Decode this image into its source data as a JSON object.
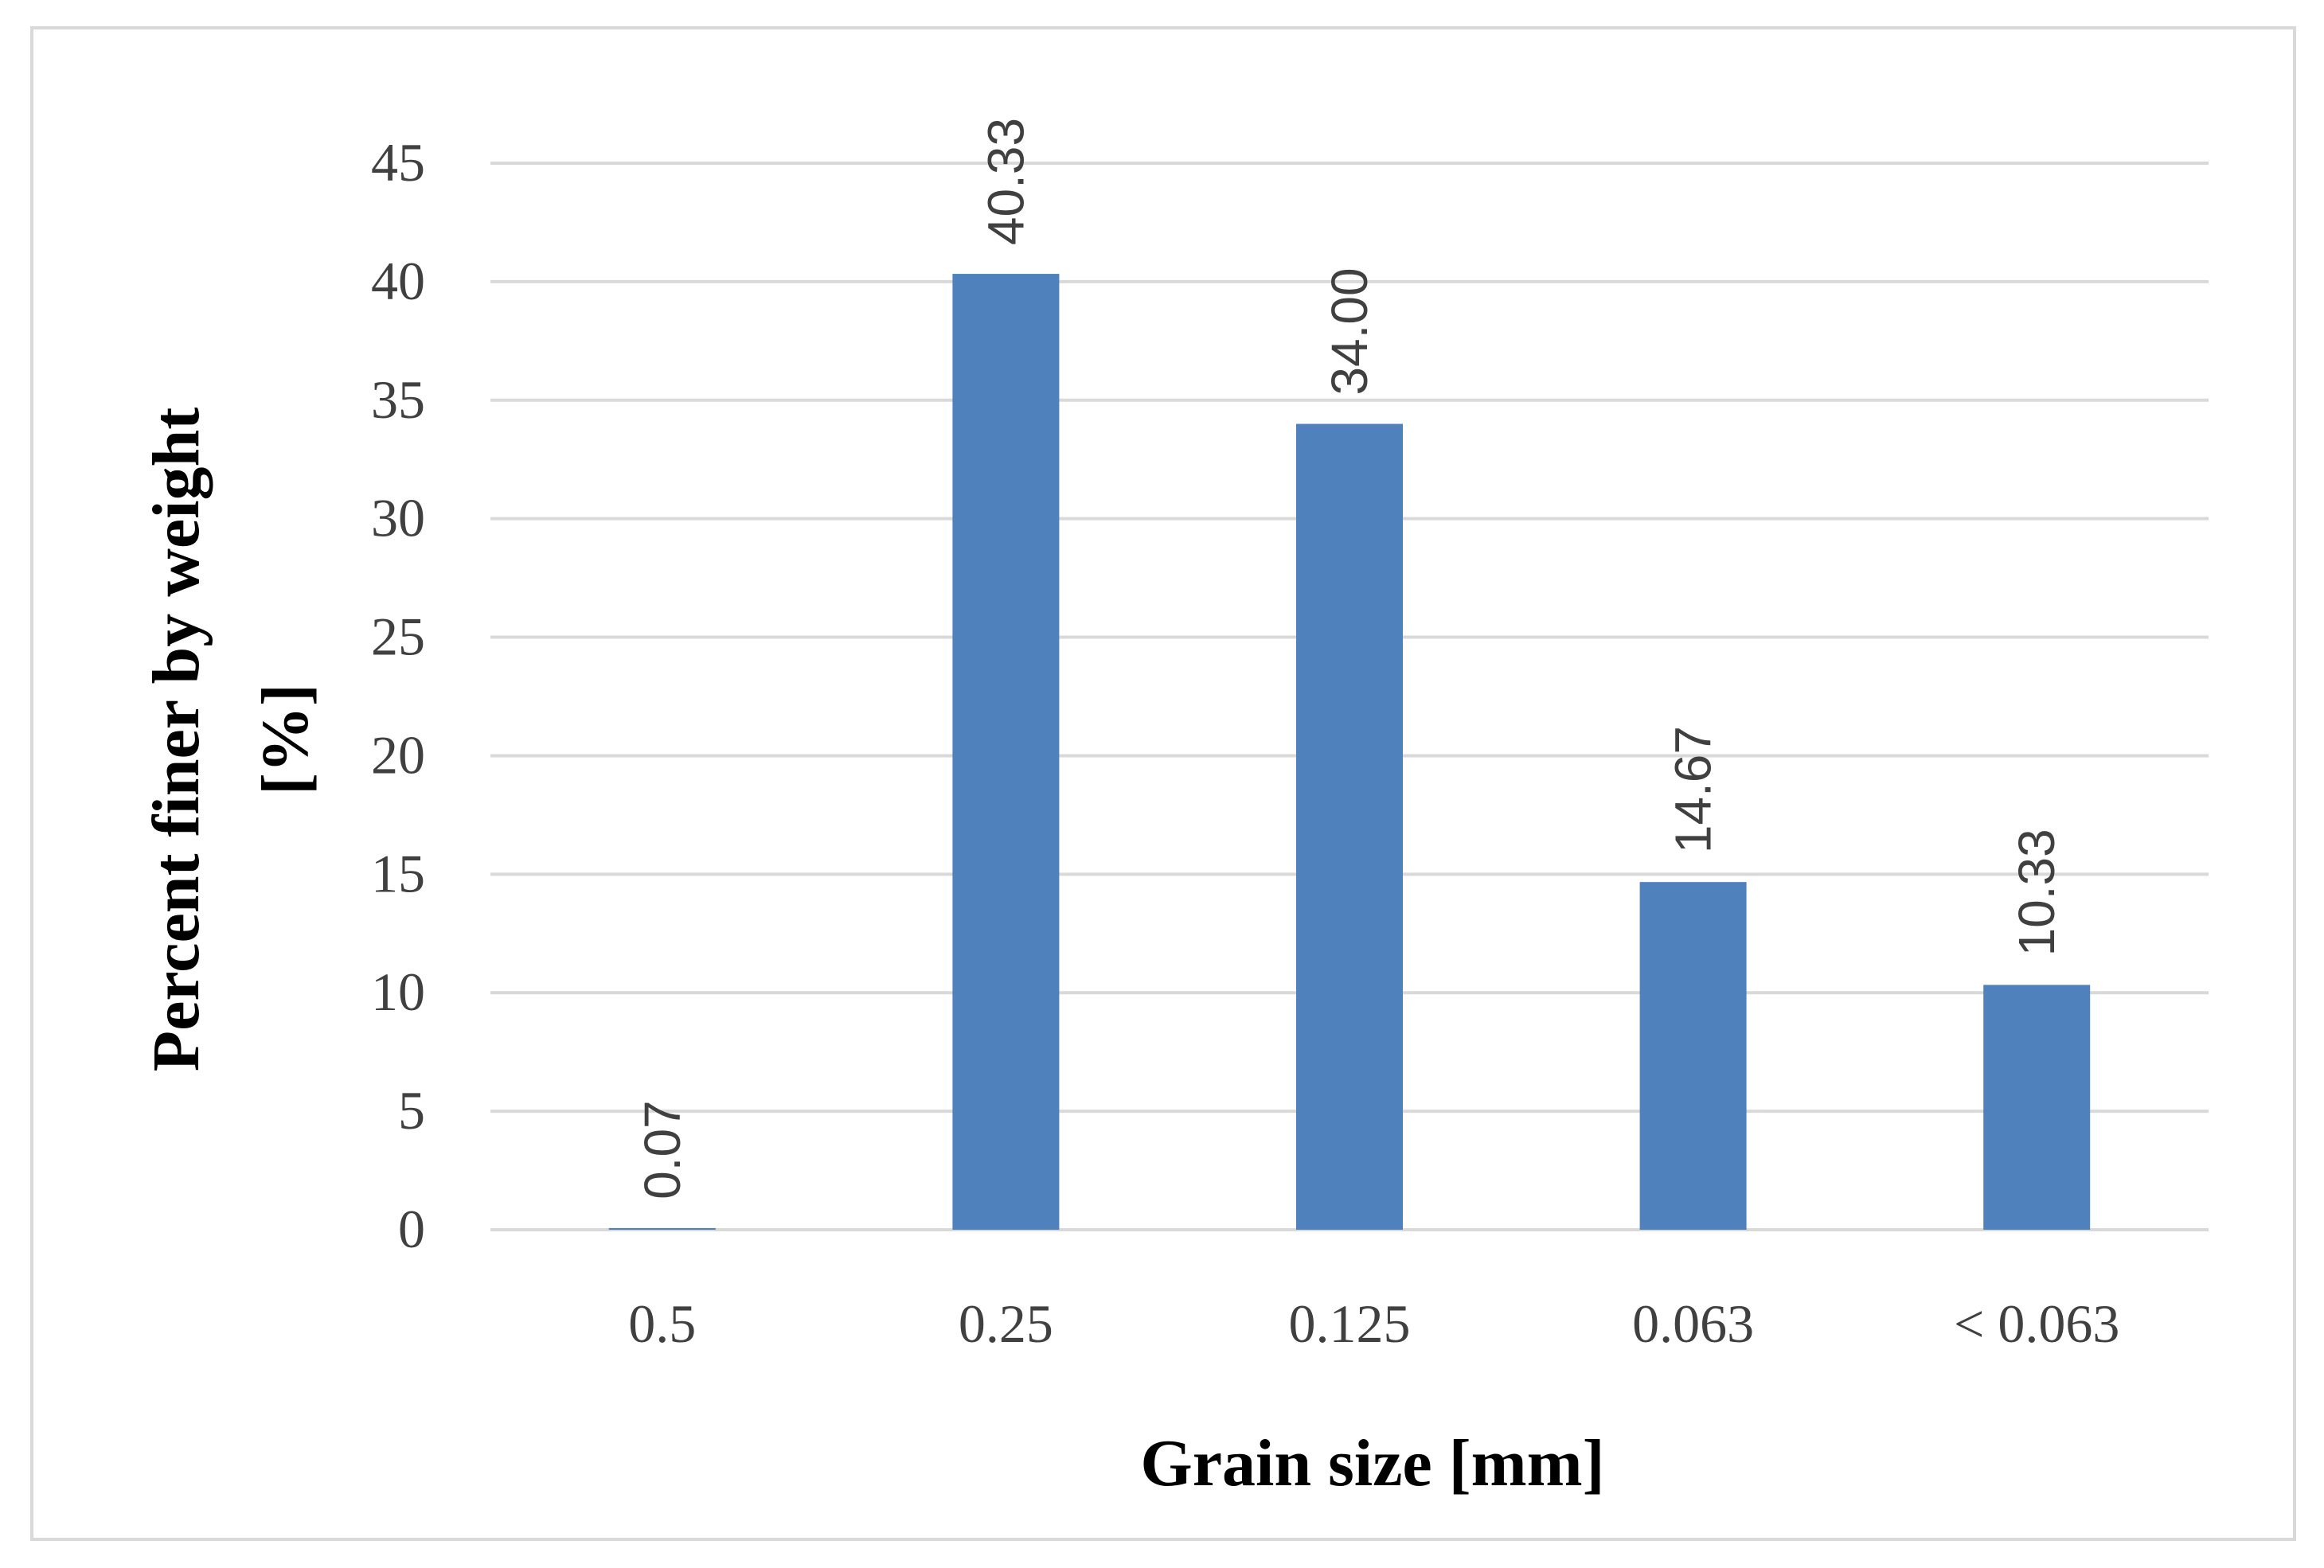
{
  "chart_data": {
    "type": "bar",
    "categories": [
      "0.5",
      "0.25",
      "0.125",
      "0.063",
      "< 0.063"
    ],
    "values": [
      0.07,
      40.33,
      34.0,
      14.67,
      10.33
    ],
    "data_labels": [
      "0.07",
      "40.33",
      "34.00",
      "14.67",
      "10.33"
    ],
    "xlabel": "Grain size [mm]",
    "ylabel_lines": [
      "Percent finer by weight",
      "[%]"
    ],
    "ylim": [
      0,
      45
    ],
    "y_ticks": [
      0,
      5,
      10,
      15,
      20,
      25,
      30,
      35,
      40,
      45
    ],
    "grid": true,
    "legend": "none",
    "bar_color": "#4f81bd",
    "grid_color": "#d9d9d9"
  }
}
